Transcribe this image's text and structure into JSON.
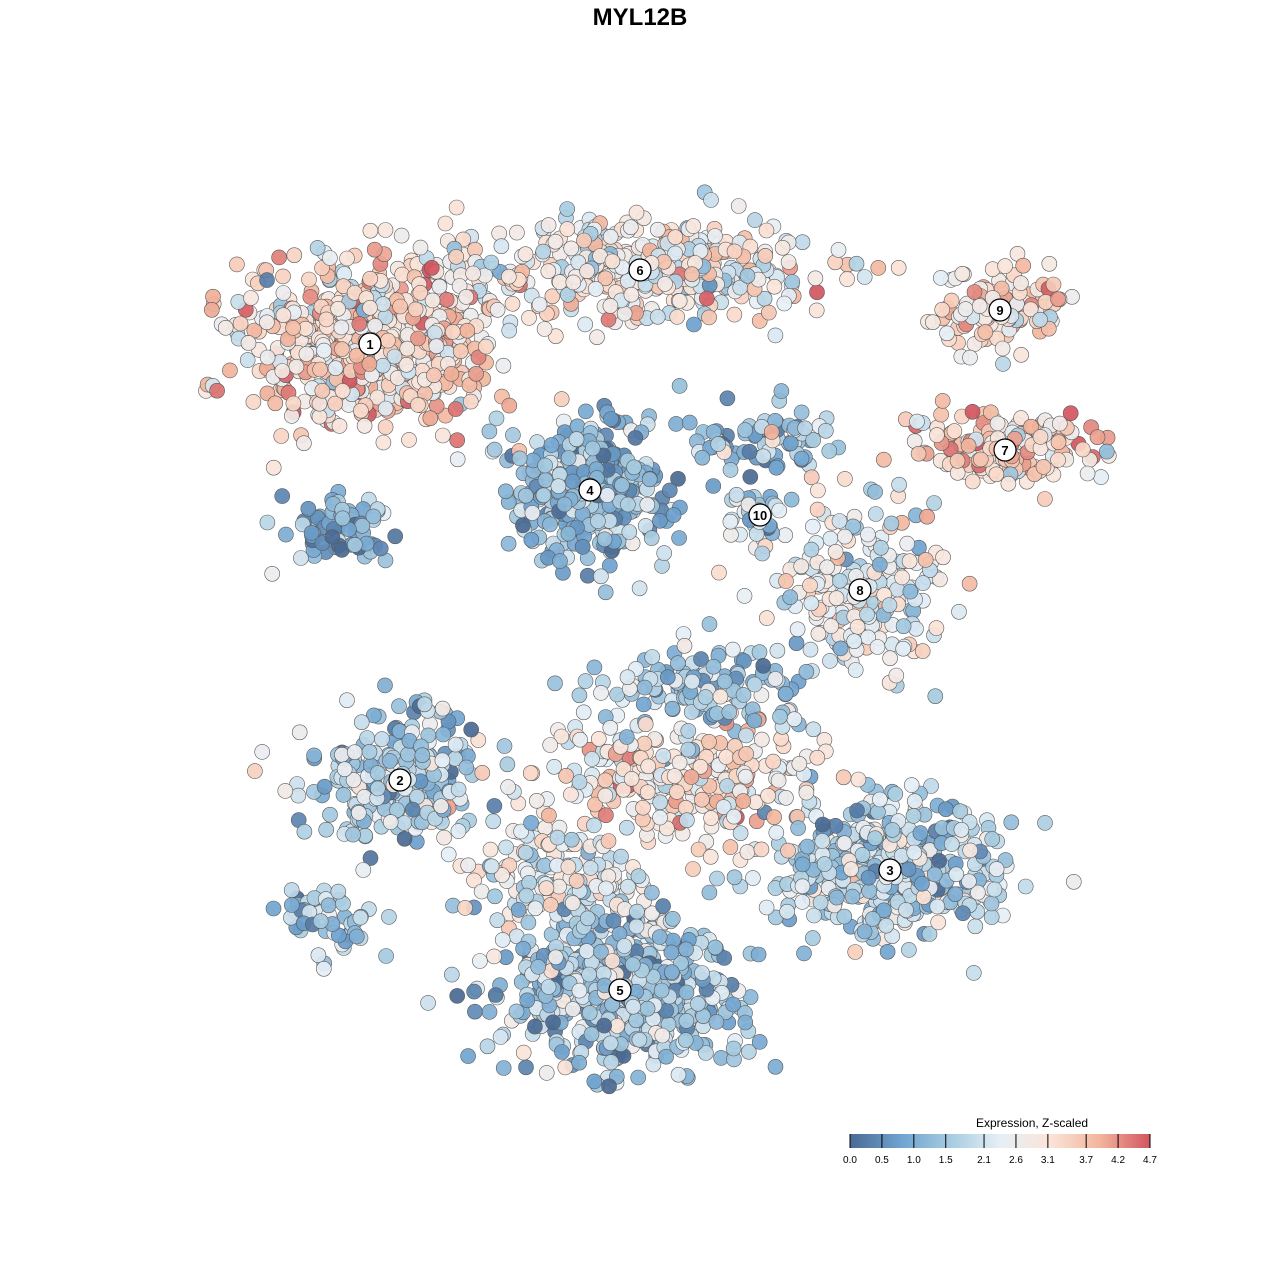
{
  "chart_data": {
    "type": "scatter",
    "title": "MYL12B",
    "xlabel": "",
    "ylabel": "",
    "grid": false,
    "legend": {
      "title": "Expression, Z-scaled",
      "placement": "bottom-right",
      "ticks": [
        "0.0",
        "0.5",
        "1.0",
        "1.5",
        "2.1",
        "2.6",
        "3.1",
        "3.7",
        "4.2",
        "4.7"
      ],
      "range": [
        0.0,
        4.7
      ],
      "colors": [
        "#4a6a94",
        "#6ea2cf",
        "#a6cbe0",
        "#e6eff6",
        "#fbe4d8",
        "#f2b59c",
        "#d2555f"
      ]
    },
    "clusters": [
      {
        "label": "1",
        "center": [
          370,
          344
        ],
        "mean_expr": 3.2,
        "spread": [
          85,
          55
        ],
        "n": 700
      },
      {
        "label": "6",
        "center": [
          640,
          270
        ],
        "mean_expr": 2.8,
        "spread": [
          120,
          35
        ],
        "n": 420
      },
      {
        "label": "9",
        "center": [
          1000,
          310
        ],
        "mean_expr": 3.1,
        "spread": [
          45,
          25
        ],
        "n": 120
      },
      {
        "label": "7",
        "center": [
          1005,
          450
        ],
        "mean_expr": 3.3,
        "spread": [
          70,
          25
        ],
        "n": 170
      },
      {
        "label": "4",
        "center": [
          590,
          490
        ],
        "mean_expr": 1.2,
        "spread": [
          50,
          45
        ],
        "n": 420
      },
      {
        "label": "10",
        "center": [
          760,
          515
        ],
        "mean_expr": 2.0,
        "spread": [
          18,
          20
        ],
        "n": 40
      },
      {
        "label": "8",
        "center": [
          860,
          590
        ],
        "mean_expr": 2.4,
        "spread": [
          55,
          50
        ],
        "n": 220
      },
      {
        "label": "2",
        "center": [
          400,
          780
        ],
        "mean_expr": 1.6,
        "spread": [
          55,
          40
        ],
        "n": 280
      },
      {
        "label": "3",
        "center": [
          890,
          870
        ],
        "mean_expr": 1.7,
        "spread": [
          75,
          45
        ],
        "n": 450
      },
      {
        "label": "5",
        "center": [
          620,
          990
        ],
        "mean_expr": 1.6,
        "spread": [
          80,
          55
        ],
        "n": 600
      }
    ],
    "bridges": [
      {
        "center": [
          680,
          780
        ],
        "mean_expr": 3.0,
        "spread": [
          90,
          40
        ],
        "n": 260
      },
      {
        "center": [
          700,
          690
        ],
        "mean_expr": 1.5,
        "spread": [
          70,
          30
        ],
        "n": 140
      },
      {
        "center": [
          560,
          880
        ],
        "mean_expr": 2.4,
        "spread": [
          60,
          40
        ],
        "n": 160
      },
      {
        "center": [
          340,
          530
        ],
        "mean_expr": 1.0,
        "spread": [
          35,
          25
        ],
        "n": 70
      },
      {
        "center": [
          310,
          910
        ],
        "mean_expr": 1.3,
        "spread": [
          25,
          15
        ],
        "n": 30
      },
      {
        "center": [
          355,
          930
        ],
        "mean_expr": 1.6,
        "spread": [
          25,
          20
        ],
        "n": 25
      },
      {
        "center": [
          760,
          440
        ],
        "mean_expr": 1.3,
        "spread": [
          50,
          25
        ],
        "n": 80
      }
    ]
  }
}
